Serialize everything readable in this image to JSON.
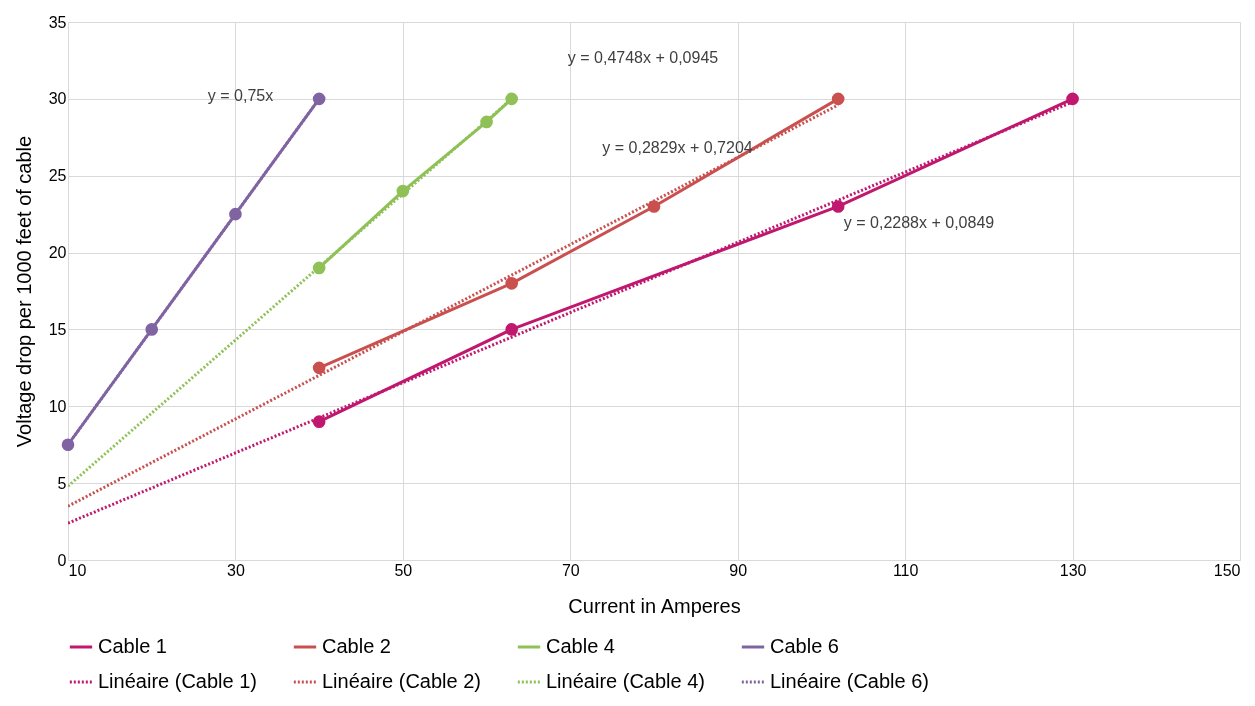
{
  "chart_data": {
    "type": "line",
    "xlabel": "Current in Amperes",
    "ylabel": "Voltage drop per 1000 feet of cable",
    "xlim": [
      10,
      150
    ],
    "xticks": [
      10,
      30,
      50,
      70,
      90,
      110,
      130,
      150
    ],
    "ylim": [
      0,
      35
    ],
    "yticks": [
      0,
      5,
      10,
      15,
      20,
      25,
      30,
      35
    ],
    "grid": true,
    "legend": "bottom",
    "series": [
      {
        "name": "Cable 1",
        "color": "#c0176f",
        "x": [
          40,
          63,
          102,
          130
        ],
        "values": [
          9,
          15,
          23,
          30
        ],
        "marker": "circle",
        "line_style": "solid"
      },
      {
        "name": "Cable 2",
        "color": "#c9504f",
        "x": [
          40,
          63,
          80,
          102
        ],
        "values": [
          12.5,
          18,
          23,
          30
        ],
        "marker": "circle",
        "line_style": "solid"
      },
      {
        "name": "Cable 4",
        "color": "#8fc157",
        "x": [
          40,
          50,
          60,
          63
        ],
        "values": [
          19,
          24,
          28.5,
          30
        ],
        "marker": "circle",
        "line_style": "solid"
      },
      {
        "name": "Cable 6",
        "color": "#8064a2",
        "x": [
          10,
          20,
          30,
          40
        ],
        "values": [
          7.5,
          15,
          22.5,
          30
        ],
        "marker": "circle",
        "line_style": "solid"
      },
      {
        "name": "Linéaire (Cable 1)",
        "color": "#c0176f",
        "x": [
          10,
          130
        ],
        "values": [
          2.4,
          29.8
        ],
        "marker": "none",
        "line_style": "dotted"
      },
      {
        "name": "Linéaire (Cable 2)",
        "color": "#c9504f",
        "x": [
          10,
          102
        ],
        "values": [
          3.5,
          29.6
        ],
        "marker": "none",
        "line_style": "dotted"
      },
      {
        "name": "Linéaire (Cable 4)",
        "color": "#8fc157",
        "x": [
          10,
          63
        ],
        "values": [
          4.8,
          30.0
        ],
        "marker": "none",
        "line_style": "dotted"
      },
      {
        "name": "Linéaire (Cable 6)",
        "color": "#8064a2",
        "x": [
          10,
          40
        ],
        "values": [
          7.5,
          30.0
        ],
        "marker": "none",
        "line_style": "dotted"
      }
    ],
    "annotations": [
      "y = 0,75x",
      "y = 0,4748x + 0,0945",
      "y = 0,2829x + 0,7204",
      "y = 0,2288x + 0,0849"
    ]
  }
}
